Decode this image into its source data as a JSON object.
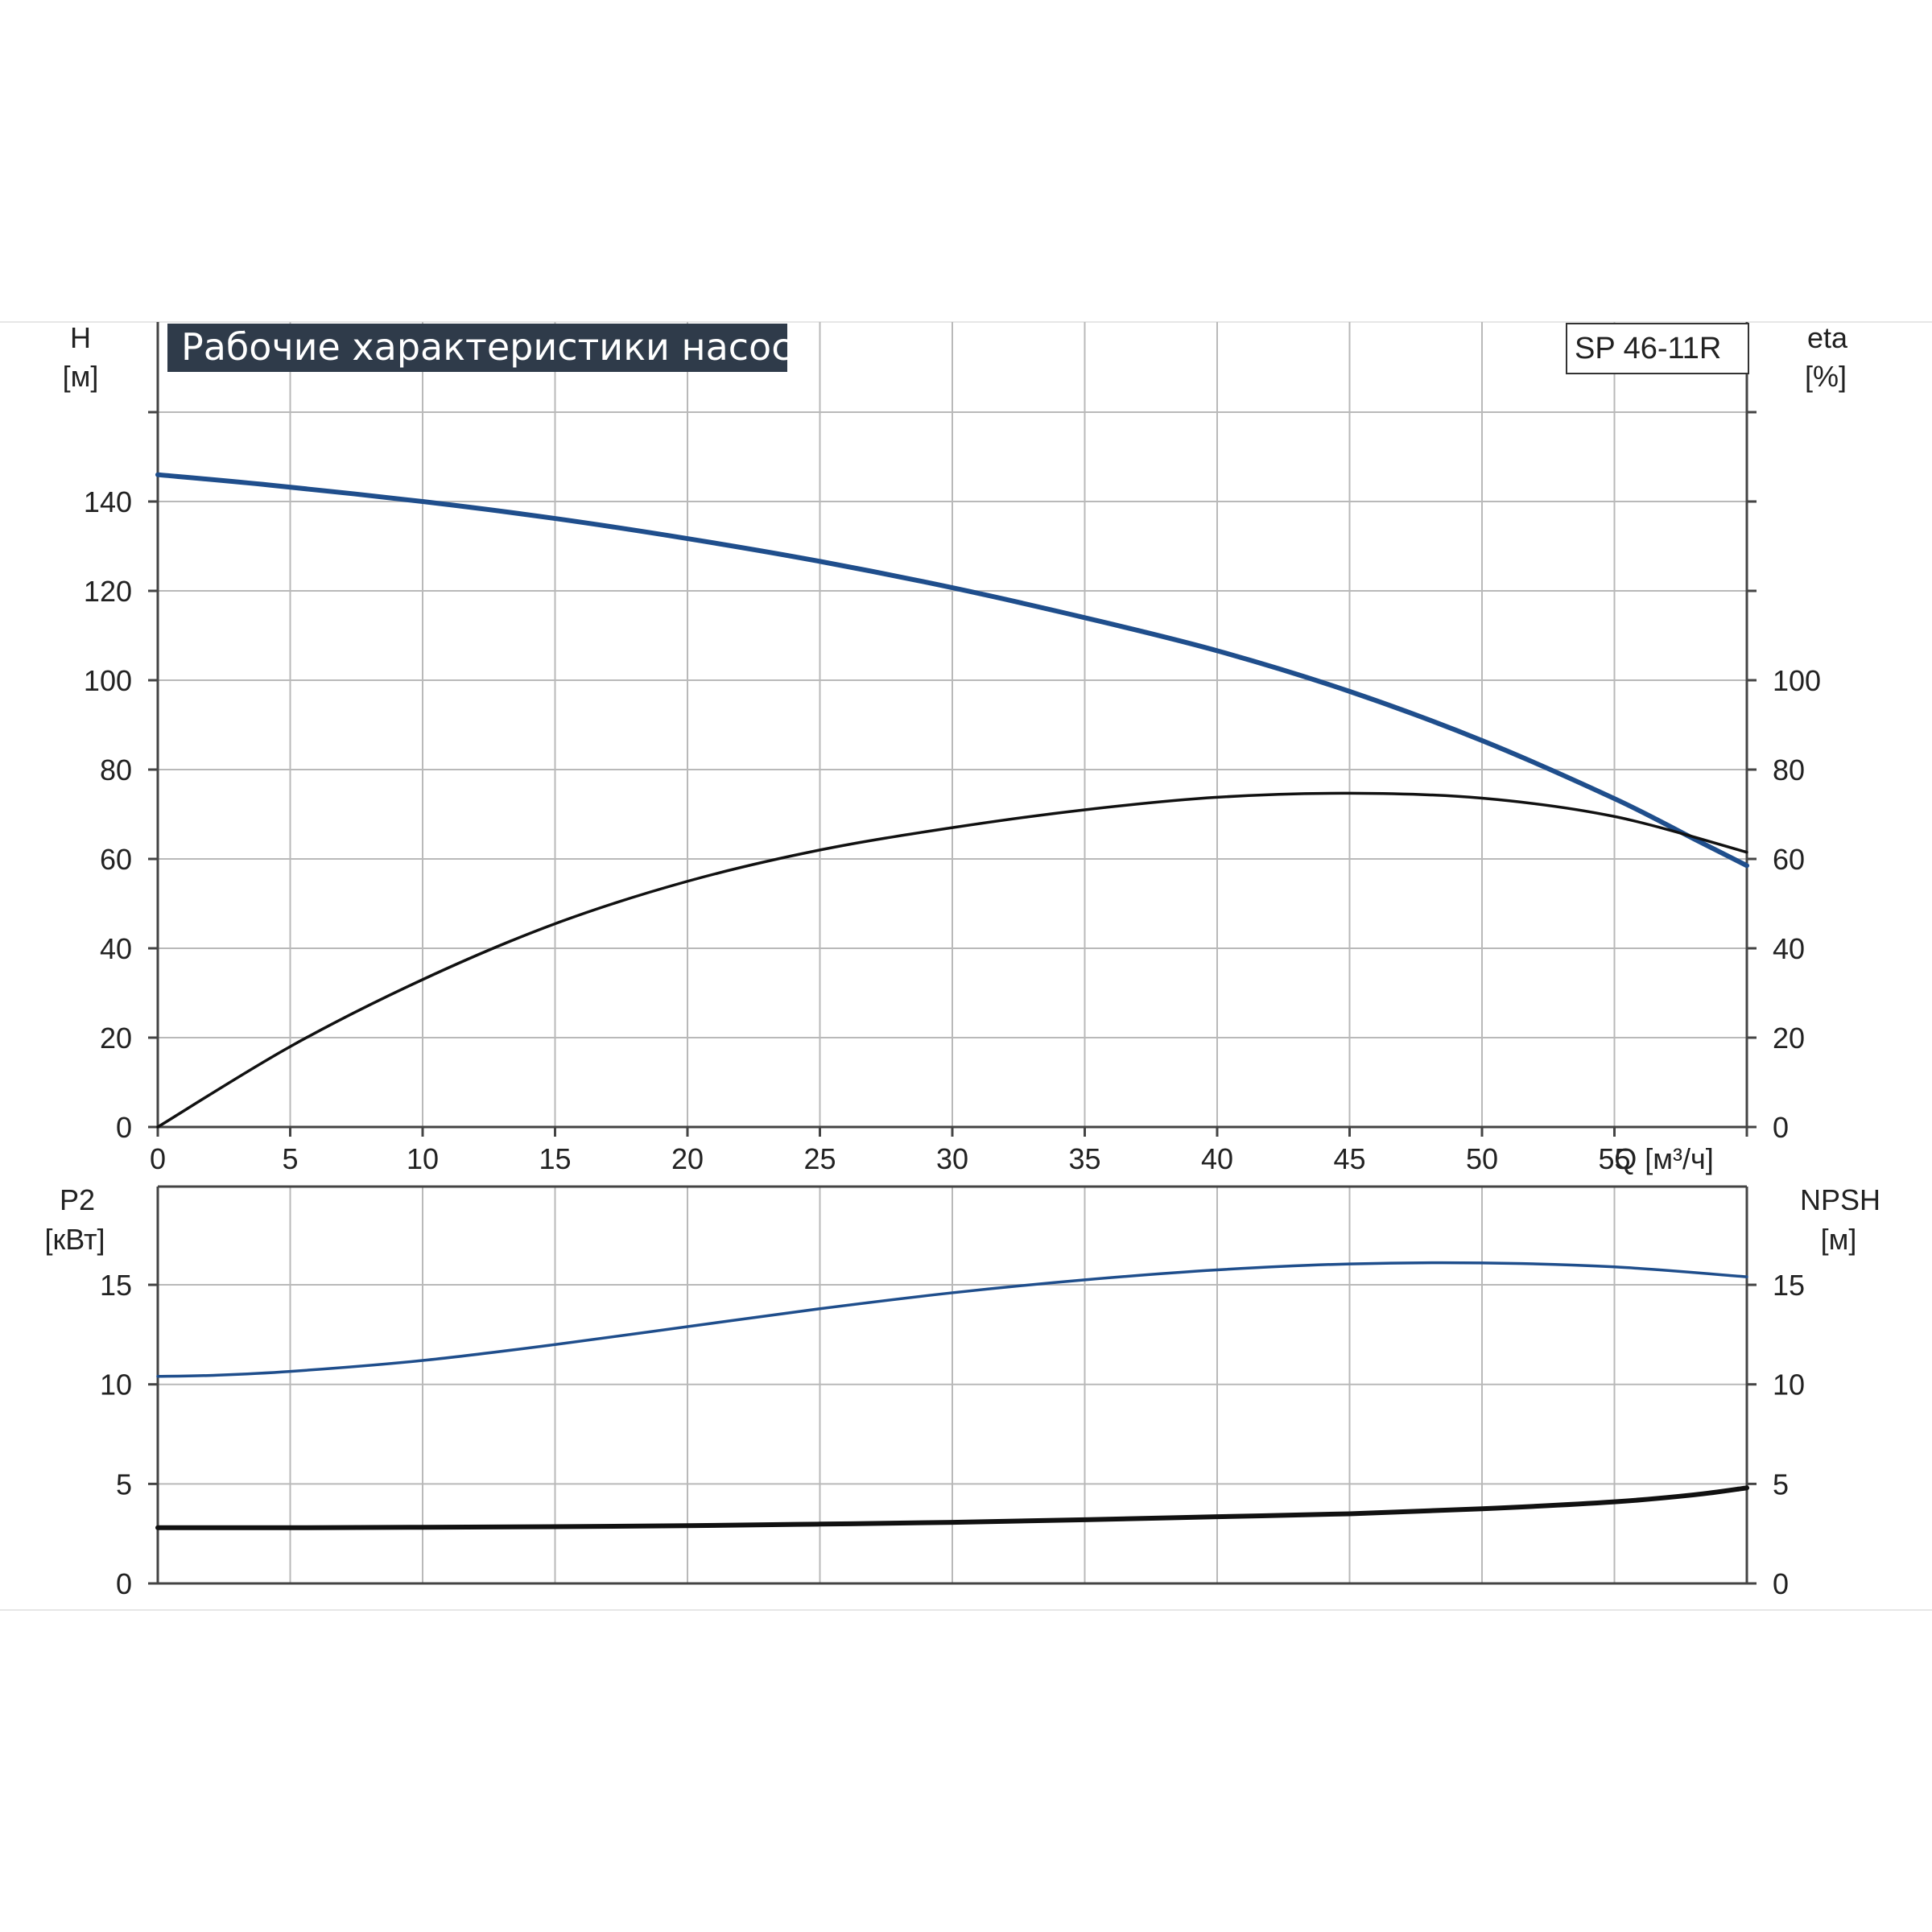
{
  "chart_data": [
    {
      "type": "line",
      "title": "Рабочие характеристики насоса",
      "model": "SP 46-11R",
      "xlabel": "Q [м³/ч]",
      "ylabel_left": {
        "name": "H",
        "unit": "[м]"
      },
      "ylabel_right": {
        "name": "eta",
        "unit": "[%]"
      },
      "xlim": [
        0,
        60
      ],
      "ylim_left": [
        0,
        160
      ],
      "ylim_right": [
        0,
        160
      ],
      "x_ticks": [
        "0",
        "5",
        "10",
        "15",
        "20",
        "25",
        "30",
        "35",
        "40",
        "45",
        "50",
        "55"
      ],
      "y_ticks_left": [
        "0",
        "20",
        "40",
        "60",
        "80",
        "100",
        "120",
        "140"
      ],
      "y_ticks_right": [
        "0",
        "20",
        "40",
        "60",
        "80",
        "100"
      ],
      "grid": true,
      "series": [
        {
          "color": "#1f4e8c",
          "x": [
            0,
            4.2,
            10,
            15,
            20,
            25,
            30,
            35,
            40,
            45,
            50,
            55,
            58,
            60
          ],
          "y": [
            146,
            143.7,
            140,
            136.2,
            131.7,
            126.6,
            120.7,
            114,
            106.6,
            97.5,
            86.5,
            73.5,
            64.5,
            58.5
          ]
        },
        {
          "color": "#111111",
          "x": [
            0,
            5,
            10,
            15,
            20,
            25,
            30,
            35,
            40,
            45,
            50,
            55,
            60
          ],
          "y": [
            0,
            18,
            33,
            45.5,
            55,
            62,
            67,
            71,
            73.8,
            74.7,
            73.6,
            69.5,
            61.5
          ]
        }
      ]
    },
    {
      "type": "line",
      "ylabel_left": {
        "name": "P2",
        "unit": "[кВт]"
      },
      "ylabel_right": {
        "name": "NPSH",
        "unit": "[м]"
      },
      "xlim": [
        0,
        60
      ],
      "ylim_left": [
        0,
        20
      ],
      "ylim_right": [
        0,
        20
      ],
      "y_ticks_left": [
        "0",
        "5",
        "10",
        "15"
      ],
      "y_ticks_right": [
        "0",
        "5",
        "10",
        "15"
      ],
      "grid": true,
      "series": [
        {
          "color": "#1f4e8c",
          "x": [
            0,
            2,
            5,
            10,
            15,
            20,
            25,
            30,
            35,
            40,
            45,
            50,
            55,
            60
          ],
          "y": [
            10.4,
            10.45,
            10.65,
            11.2,
            12,
            12.9,
            13.8,
            14.6,
            15.25,
            15.75,
            16.05,
            16.1,
            15.9,
            15.4
          ]
        },
        {
          "color": "#111111",
          "x": [
            0,
            5,
            10,
            15,
            20,
            25,
            30,
            35,
            40,
            45,
            50,
            55,
            58,
            60
          ],
          "y": [
            2.8,
            2.8,
            2.82,
            2.85,
            2.9,
            2.98,
            3.07,
            3.2,
            3.35,
            3.5,
            3.75,
            4.1,
            4.45,
            4.8
          ]
        }
      ]
    }
  ]
}
